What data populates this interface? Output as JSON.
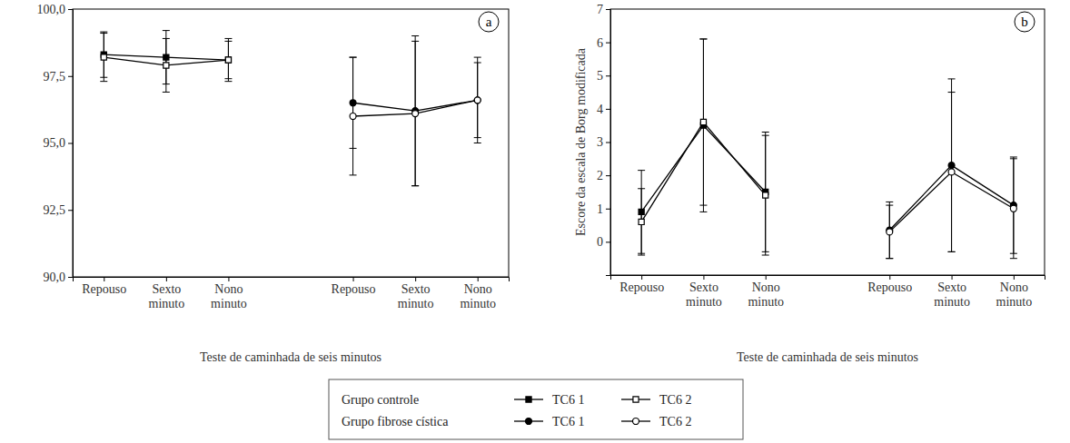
{
  "chart_data": [
    {
      "type": "line",
      "panel": "a",
      "xlabel": "Teste de caminhada de seis minutos",
      "categories": [
        "Repouso",
        "Sexto minuto",
        "Nono minuto",
        null,
        "Repouso",
        "Sexto minuto",
        "Nono minuto"
      ],
      "ylim": [
        90,
        100
      ],
      "yticks": [
        {
          "value": 90,
          "label": "90,0"
        },
        {
          "value": 92.5,
          "label": "92,5"
        },
        {
          "value": 95,
          "label": "95,0"
        },
        {
          "value": 97.5,
          "label": "97,5"
        },
        {
          "value": 100,
          "label": "100,0"
        }
      ],
      "series": [
        {
          "name": "TC6 1",
          "group": "Grupo controle",
          "color": "#000000",
          "marker": "square",
          "values": [
            98.3,
            98.2,
            98.1,
            null,
            null,
            null,
            null
          ],
          "errors": [
            0.85,
            1.0,
            0.8,
            null,
            null,
            null,
            null
          ]
        },
        {
          "name": "TC6 2",
          "group": "Grupo controle",
          "color": "#000000",
          "marker": "square-open",
          "values": [
            98.2,
            97.9,
            98.1,
            null,
            null,
            null,
            null
          ],
          "errors": [
            0.9,
            1.0,
            0.7,
            null,
            null,
            null,
            null
          ]
        },
        {
          "name": "TC6 1",
          "group": "Grupo fibrose cística",
          "color": "#000000",
          "marker": "circle",
          "values": [
            null,
            null,
            null,
            null,
            96.5,
            96.2,
            96.6
          ],
          "errors": [
            null,
            null,
            null,
            null,
            1.7,
            2.8,
            1.6
          ]
        },
        {
          "name": "TC6 2",
          "group": "Grupo fibrose cística",
          "color": "#000000",
          "marker": "circle-open",
          "values": [
            null,
            null,
            null,
            null,
            96.0,
            96.1,
            96.6
          ],
          "errors": [
            null,
            null,
            null,
            null,
            2.2,
            2.7,
            1.4
          ]
        }
      ]
    },
    {
      "type": "line",
      "panel": "b",
      "xlabel": "Teste de caminhada de seis minutos",
      "ylabel": "Escore da escala de Borg modificada",
      "categories": [
        "Repouso",
        "Sexto minuto",
        "Nono minuto",
        null,
        "Repouso",
        "Sexto minuto",
        "Nono minuto"
      ],
      "ylim": [
        -1,
        7
      ],
      "yticks": [
        0,
        1,
        2,
        3,
        4,
        5,
        6,
        7
      ],
      "series": [
        {
          "name": "TC6 1",
          "group": "Grupo controle",
          "color": "#000000",
          "marker": "square",
          "values": [
            0.9,
            3.5,
            1.5,
            null,
            null,
            null,
            null
          ],
          "errors": [
            1.25,
            2.6,
            1.8,
            null,
            null,
            null,
            null
          ]
        },
        {
          "name": "TC6 2",
          "group": "Grupo controle",
          "color": "#000000",
          "marker": "square-open",
          "values": [
            0.6,
            3.6,
            1.4,
            null,
            null,
            null,
            null
          ],
          "errors": [
            1.0,
            2.5,
            1.8,
            null,
            null,
            null,
            null
          ]
        },
        {
          "name": "TC6 1",
          "group": "Grupo fibrose cística",
          "color": "#000000",
          "marker": "circle",
          "values": [
            null,
            null,
            null,
            null,
            0.35,
            2.3,
            1.1
          ],
          "errors": [
            null,
            null,
            null,
            null,
            0.85,
            2.6,
            1.45
          ]
        },
        {
          "name": "TC6 2",
          "group": "Grupo fibrose cística",
          "color": "#000000",
          "marker": "circle-open",
          "values": [
            null,
            null,
            null,
            null,
            0.3,
            2.1,
            1.0
          ],
          "errors": [
            null,
            null,
            null,
            null,
            0.8,
            2.4,
            1.5
          ]
        }
      ]
    }
  ]
}
